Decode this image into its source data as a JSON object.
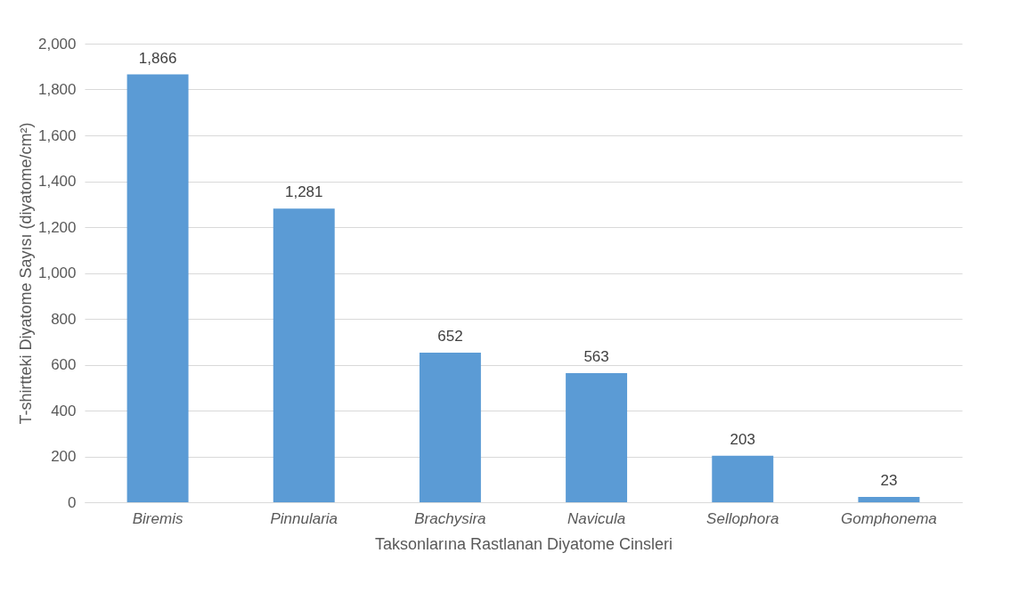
{
  "chart_data": {
    "type": "bar",
    "xlabel": "Taksonlarına Rastlanan Diyatome Cinsleri",
    "ylabel": "T-shirtteki Diyatome Sayısı (diyatome/cm²)",
    "categories": [
      "Biremis",
      "Pinnularia",
      "Brachysira",
      "Navicula",
      "Sellophora",
      "Gomphonema"
    ],
    "values": [
      1866,
      1281,
      652,
      563,
      203,
      23
    ],
    "color": "#5b9bd5",
    "value_labels": [
      "1,866",
      "1,281",
      "652",
      "563",
      "203",
      "23"
    ],
    "ylim": [
      0,
      2000
    ],
    "yticks": [
      0,
      200,
      400,
      600,
      800,
      {
        "value": 1000,
        "label": "1,000"
      },
      {
        "value": 1200,
        "label": "1,200"
      },
      {
        "value": 1400,
        "label": "1,400"
      },
      {
        "value": 1600,
        "label": "1,600"
      },
      {
        "value": 1800,
        "label": "1,800"
      },
      {
        "value": 2000,
        "label": "2,000"
      }
    ],
    "grid": "y"
  }
}
